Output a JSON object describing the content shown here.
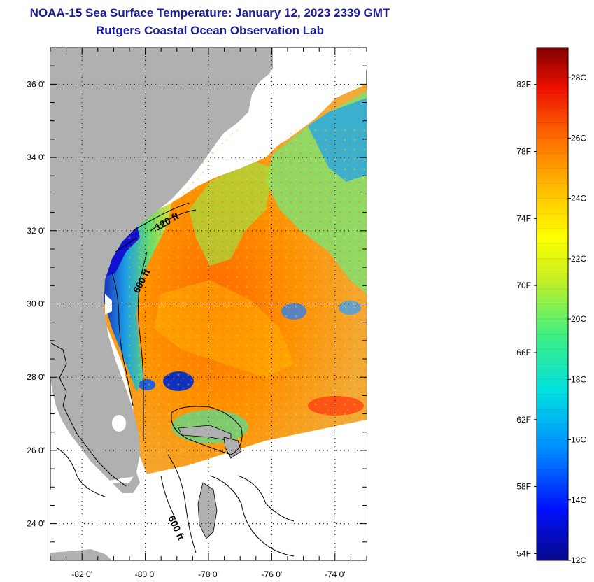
{
  "header": {
    "title": "NOAA-15 Sea Surface Temperature:  January 12, 2023 2339 GMT",
    "subtitle": "Rutgers Coastal Ocean Observation Lab"
  },
  "map": {
    "lon_range": [
      -83,
      -73
    ],
    "lat_range": [
      23,
      37
    ],
    "lat_ticks": [
      {
        "value": 36,
        "label": "36 0'"
      },
      {
        "value": 34,
        "label": "34 0'"
      },
      {
        "value": 32,
        "label": "32 0'"
      },
      {
        "value": 30,
        "label": "30 0'"
      },
      {
        "value": 28,
        "label": "28 0'"
      },
      {
        "value": 26,
        "label": "26 0'"
      },
      {
        "value": 24,
        "label": "24 0'"
      }
    ],
    "lon_ticks": [
      {
        "value": -82,
        "label": "-82 0'"
      },
      {
        "value": -80,
        "label": "-80 0'"
      },
      {
        "value": -78,
        "label": "-78 0'"
      },
      {
        "value": -76,
        "label": "-76 0'"
      },
      {
        "value": -74,
        "label": "-74 0'"
      }
    ],
    "isobath_labels": {
      "a": "120 ft",
      "b": "600 ft",
      "c": "600 ft"
    },
    "colors": {
      "land": "#b0b0b0",
      "cloud": "#ffffff",
      "grid": "#000000"
    }
  },
  "colorbar": {
    "celsius_range": [
      12,
      29
    ],
    "fahrenheit_labels": [
      {
        "value": 82,
        "label": "82F"
      },
      {
        "value": 78,
        "label": "78F"
      },
      {
        "value": 74,
        "label": "74F"
      },
      {
        "value": 70,
        "label": "70F"
      },
      {
        "value": 66,
        "label": "66F"
      },
      {
        "value": 62,
        "label": "62F"
      },
      {
        "value": 58,
        "label": "58F"
      },
      {
        "value": 54,
        "label": "54F"
      }
    ],
    "celsius_labels": [
      {
        "value": 28,
        "label": "28C"
      },
      {
        "value": 26,
        "label": "26C"
      },
      {
        "value": 24,
        "label": "24C"
      },
      {
        "value": 22,
        "label": "22C"
      },
      {
        "value": 20,
        "label": "20C"
      },
      {
        "value": 18,
        "label": "18C"
      },
      {
        "value": 16,
        "label": "16C"
      },
      {
        "value": 14,
        "label": "14C"
      },
      {
        "value": 12,
        "label": "12C"
      }
    ]
  }
}
